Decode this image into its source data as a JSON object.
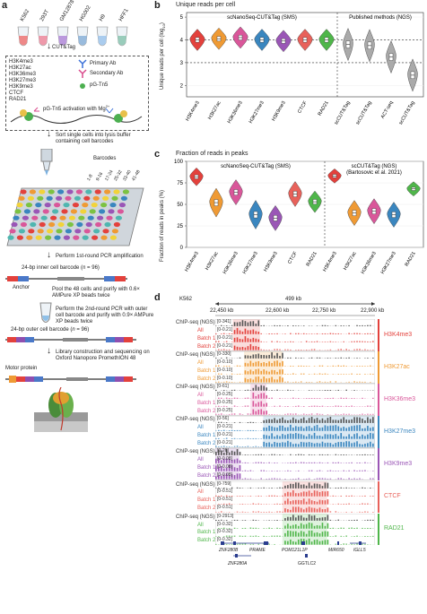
{
  "panel_a": {
    "letter": "a",
    "cell_lines": [
      "K562",
      "293T",
      "GM12878",
      "HG002",
      "H9",
      "HFF1"
    ],
    "step1": "CUT&Tag",
    "marks": [
      "H3K4me3",
      "H3K27ac",
      "H3K36me3",
      "H3K27me3",
      "H3K9me3",
      "CTCF",
      "RAD21"
    ],
    "legend": {
      "primary": "Primary Ab",
      "secondary": "Secondary Ab",
      "tn5": "pG-Tn5"
    },
    "activation": "pG-Tn5 activation with Mg",
    "activation_sup": "2+",
    "sort_text": "Sort single cells into lysis buffer containing cell barcodes",
    "barcodes_label": "Barcodes",
    "barcode_ranges": [
      "1-8",
      "9-16",
      "17-24",
      "25-32",
      "33-40",
      "41-48"
    ],
    "pcr1": "Perform 1st-round PCR amplification",
    "inner_barcode_prefix": "24-bp inner cell barcode (",
    "inner_barcode_n": "n",
    "inner_barcode_suffix": " = 96)",
    "anchor": "Anchor",
    "pool": "Pool the 48 cells and purify with 0.6× AMPure XP beads twice",
    "pcr2": "Perform the 2nd-round PCR with outer cell barcode and purify with 0.9× AMPure XP beads twice",
    "outer_barcode_prefix": "24-bp outer cell barcode (",
    "outer_barcode_n": "n",
    "outer_barcode_suffix": " = 96)",
    "library": "Library construction and sequencing on Oxford Nanopore PromethION 48",
    "motor": "Motor protein"
  },
  "panel_b": {
    "letter": "b",
    "title": "Unique reads per cell",
    "sms_label": "scNanoSeq-CUT&Tag (SMS)",
    "ngs_label": "Published methods (NGS)",
    "ylabel": "Unique reads per cell (log",
    "ylabel_sub": "10",
    "ylabel_end": ")",
    "yticks": [
      "2",
      "3",
      "4",
      "5"
    ]
  },
  "panel_c": {
    "letter": "c",
    "title": "Fraction of reads in peaks",
    "sms_label": "scNanoSeq-CUT&Tag (SMS)",
    "ngs_label_1": "scCUT&Tag (NGS)",
    "ngs_label_2": "(Bartosovic et al. 2021)",
    "ylabel": "Fraction of reads in peaks (%)",
    "yticks": [
      "0",
      "25",
      "50",
      "75",
      "100"
    ]
  },
  "panel_d": {
    "letter": "d",
    "cell_line": "K562",
    "scale": "499 kb",
    "coords": [
      "22,450 kb",
      "22,600 kb",
      "22,750 kb",
      "22,900 kb"
    ],
    "chip_label": "ChIP-seq (NGS)",
    "all_label": "All",
    "batch1_label": "Batch 1",
    "batch2_label": "Batch 2",
    "groups": [
      {
        "mark": "H3K4me3",
        "color": "#e3413c",
        "ranges": [
          "[0-341]",
          "[0-0.21]",
          "[0-0.21]",
          "[0-0.21]"
        ]
      },
      {
        "mark": "H3K27ac",
        "color": "#ef9a34",
        "ranges": [
          "[0-330]",
          "[0-0.10]",
          "[0-0.10]",
          "[0-0.10]"
        ]
      },
      {
        "mark": "H3K36me3",
        "color": "#d9579a",
        "ranges": [
          "[0-61]",
          "[0-0.25]",
          "[0-0.25]",
          "[0-0.25]"
        ]
      },
      {
        "mark": "H3K27me3",
        "color": "#3a86bf",
        "ranges": [
          "[0-56]",
          "[0-0.21]",
          "[0-0.21]",
          "[0-0.21]"
        ]
      },
      {
        "mark": "H3K9me3",
        "color": "#9a56b6",
        "ranges": [
          "[0-26]",
          "[0-0.08]",
          "[0-0.08]",
          "[0-0.08]"
        ]
      },
      {
        "mark": "CTCF",
        "color": "#e8615a",
        "ranges": [
          "[0-759]",
          "[0-0.51]",
          "[0-0.51]",
          "[0-0.51]"
        ]
      },
      {
        "mark": "RAD21",
        "color": "#4fb64a",
        "ranges": [
          "[0-2913]",
          "[0-0.32]",
          "[0-0.32]",
          "[0-0.32]"
        ]
      }
    ],
    "genes": [
      "ZNF280B",
      "PRAME",
      "ZNF280A",
      "POM121L1P",
      "GGTLC2",
      "MIR650",
      "IGLL5"
    ]
  },
  "chart_data": [
    {
      "type": "violin",
      "title": "Unique reads per cell",
      "ylabel": "Unique reads per cell (log10)",
      "ylim": [
        1.5,
        5.2
      ],
      "categories": [
        "H3K4me3",
        "H3K27ac",
        "H3K36me3",
        "H3K27me3",
        "H3K9me3",
        "CTCF",
        "RAD21",
        "Published_1",
        "Published_2",
        "Published_3",
        "Published_4"
      ],
      "tick_labels": [
        "H3K4me3",
        "H3K27ac",
        "H3K36me3",
        "H3K27me3",
        "H3K9me3",
        "CTCF",
        "RAD21",
        "scCUT&Tag",
        "scCUT&Tag",
        "ACT-seq",
        "scCUT&Tag"
      ],
      "medians": [
        4.0,
        4.05,
        4.1,
        4.0,
        3.95,
        4.0,
        4.0,
        3.8,
        3.75,
        3.25,
        2.45
      ],
      "colors": [
        "#e3413c",
        "#ef9a34",
        "#d9579a",
        "#3a86bf",
        "#9a56b6",
        "#e8615a",
        "#4fb64a",
        "#aaaaaa",
        "#aaaaaa",
        "#aaaaaa",
        "#aaaaaa"
      ],
      "reference_lines": [
        4,
        3
      ]
    },
    {
      "type": "violin",
      "title": "Fraction of reads in peaks",
      "ylabel": "Fraction of reads in peaks (%)",
      "ylim": [
        0,
        100
      ],
      "categories": [
        "H3K4me3",
        "H3K27ac",
        "H3K36me3",
        "H3K27me3",
        "H3K9me3",
        "CTCF",
        "RAD21",
        "H3K4me3 (NGS)",
        "H3K27ac (NGS)",
        "H3K36me3 (NGS)",
        "H3K27me3 (NGS)",
        "RAD21 (NGS)"
      ],
      "medians": [
        82,
        52,
        64,
        38,
        34,
        62,
        53,
        83,
        40,
        42,
        38,
        68
      ],
      "colors": [
        "#e3413c",
        "#ef9a34",
        "#d9579a",
        "#3a86bf",
        "#9a56b6",
        "#e8615a",
        "#4fb64a",
        "#e3413c",
        "#ef9a34",
        "#d9579a",
        "#3a86bf",
        "#4fb64a"
      ]
    }
  ]
}
